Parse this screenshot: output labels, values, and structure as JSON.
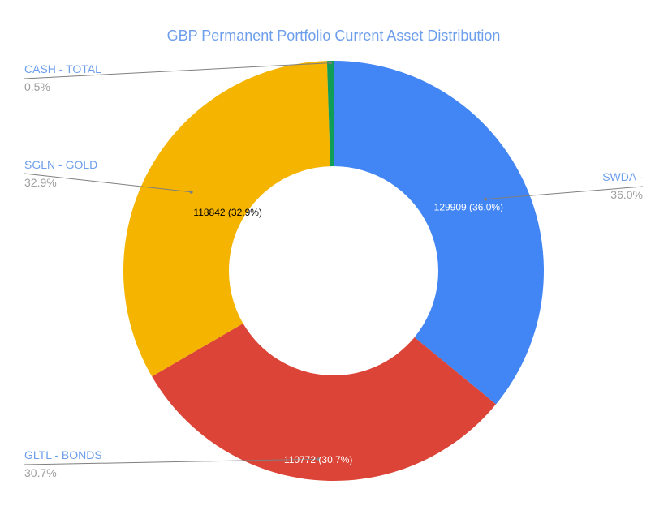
{
  "colors": {
    "title": "#6d9eeb",
    "legend_name": "#6d9eeb",
    "legend_pct": "#9e9e9e",
    "leader_line": "#7f7f7f",
    "background": "#ffffff"
  },
  "chart_data": {
    "type": "pie",
    "variant": "donut",
    "title": "GBP Permanent Portfolio Current Asset Distribution",
    "slices": [
      {
        "label": "SWDA -",
        "value": 129909,
        "percent_label": "36.0%",
        "data_label": "129909 (36.0%)",
        "color": "#4285f4",
        "data_label_color": "#ffffff"
      },
      {
        "label": "GLTL - BONDS",
        "value": 110772,
        "percent_label": "30.7%",
        "data_label": "110772 (30.7%)",
        "color": "#db4437",
        "data_label_color": "#ffffff"
      },
      {
        "label": "SGLN - GOLD",
        "value": 118842,
        "percent_label": "32.9%",
        "data_label": "118842 (32.9%)",
        "color": "#f4b400",
        "data_label_color": "#000000"
      },
      {
        "label": "CASH - TOTAL",
        "value": 1800,
        "percent_label": "0.5%",
        "data_label": "",
        "color": "#0f9d58",
        "data_label_color": "#000000"
      }
    ],
    "legend": "labeled leader lines",
    "start": "top, clockwise"
  }
}
